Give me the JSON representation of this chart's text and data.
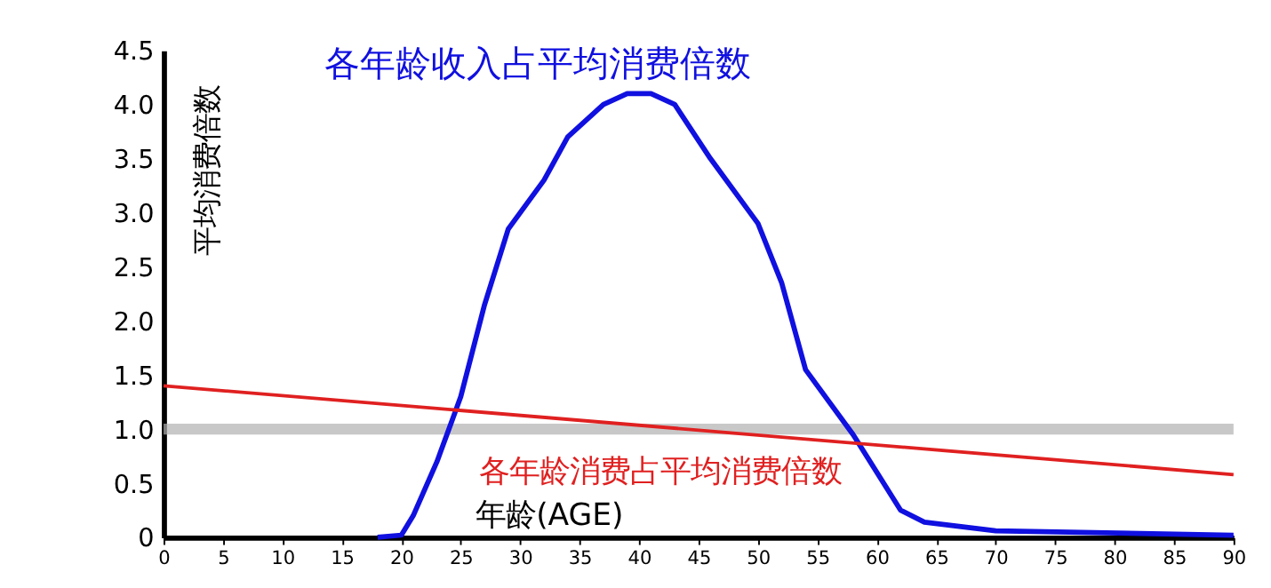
{
  "chart_data": {
    "type": "line",
    "xlabel": "年龄(AGE)",
    "ylabel": "平均消费倍数",
    "xlim": [
      0,
      90
    ],
    "xticks": [
      0,
      5,
      10,
      15,
      20,
      25,
      30,
      35,
      40,
      45,
      50,
      55,
      60,
      65,
      70,
      75,
      80,
      85,
      90
    ],
    "ylim": [
      0,
      4.5
    ],
    "yticks": [
      0,
      {
        "value": 0.5,
        "label": "0.5"
      },
      {
        "value": 1,
        "label": "1.0"
      },
      {
        "value": 1.5,
        "label": "1.5"
      },
      {
        "value": 2,
        "label": "2.0"
      },
      {
        "value": 2.5,
        "label": "2.5"
      },
      {
        "value": 3,
        "label": "3.0"
      },
      {
        "value": 3.5,
        "label": "3.5"
      },
      {
        "value": 4,
        "label": "4.0"
      },
      {
        "value": 4.5,
        "label": "4.5"
      }
    ],
    "grid": false,
    "marker": "none",
    "line_style": "solid",
    "bands": [
      {
        "axis": "y",
        "from": 0.95,
        "to": 1.05,
        "color": "#b0b0b0"
      }
    ],
    "series": [
      {
        "name": "各年龄收入占平均消费倍数",
        "color": "#1010e0",
        "x": [
          18,
          20,
          21,
          23,
          25,
          27,
          29,
          32,
          34,
          37,
          39,
          41,
          43,
          46,
          50,
          52,
          54,
          58,
          62,
          64,
          70,
          90
        ],
        "values": [
          0,
          0.02,
          0.2,
          0.7,
          1.3,
          2.15,
          2.85,
          3.3,
          3.7,
          4.0,
          4.1,
          4.1,
          4.0,
          3.5,
          2.9,
          2.35,
          1.55,
          0.95,
          0.25,
          0.14,
          0.06,
          0.02
        ]
      },
      {
        "name": "各年龄消费占平均消费倍数",
        "color": "#e02020",
        "x": [
          0,
          90
        ],
        "values": [
          1.4,
          0.58
        ]
      }
    ]
  }
}
